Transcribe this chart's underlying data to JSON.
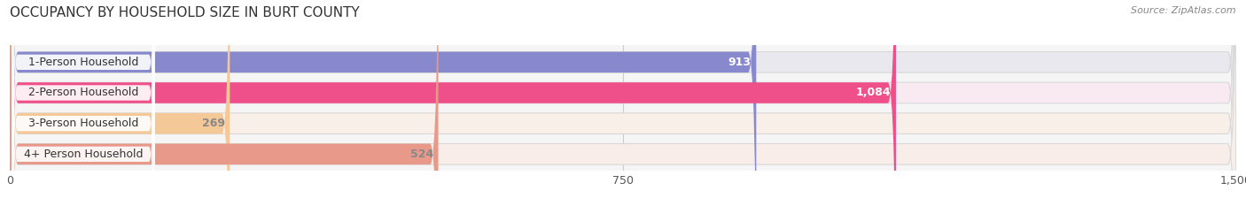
{
  "title": "OCCUPANCY BY HOUSEHOLD SIZE IN BURT COUNTY",
  "source": "Source: ZipAtlas.com",
  "categories": [
    "1-Person Household",
    "2-Person Household",
    "3-Person Household",
    "4+ Person Household"
  ],
  "values": [
    913,
    1084,
    269,
    524
  ],
  "bar_colors": [
    "#8888cc",
    "#f0508a",
    "#f5c898",
    "#e8998a"
  ],
  "bar_bg_colors": [
    "#e8e8ee",
    "#f8eaf0",
    "#f8f0e8",
    "#f8ede8"
  ],
  "value_label_colors": [
    "white",
    "white",
    "#888888",
    "#888888"
  ],
  "xlim": [
    0,
    1500
  ],
  "xticks": [
    0,
    750,
    1500
  ],
  "background_color": "#ffffff",
  "plot_bg_color": "#f5f5f5",
  "title_fontsize": 11,
  "source_fontsize": 8,
  "bar_label_fontsize": 9,
  "cat_label_fontsize": 9,
  "tick_fontsize": 9
}
